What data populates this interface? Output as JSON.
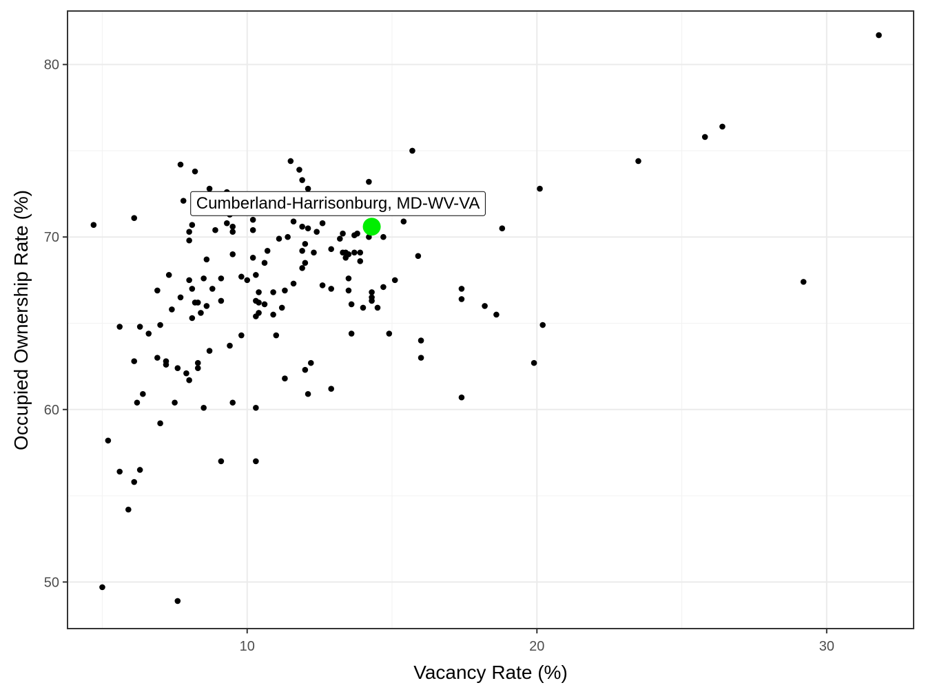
{
  "chart_data": {
    "type": "scatter",
    "title": "",
    "xlabel": "Vacancy Rate (%)",
    "ylabel": "Occupied Ownership Rate (%)",
    "xlim": [
      3.8,
      33.0
    ],
    "ylim": [
      47.3,
      83.1
    ],
    "x_ticks": [
      10,
      20,
      30
    ],
    "y_ticks": [
      50,
      60,
      70,
      80
    ],
    "x_tick_labels": [
      "10",
      "20",
      "30"
    ],
    "y_tick_labels": [
      "50",
      "60",
      "70",
      "80"
    ],
    "grid": true,
    "point_color": "#000000",
    "highlight_color": "#00ee00",
    "highlight": {
      "label": "Cumberland-Harrisonburg, MD-WV-VA",
      "x": 14.3,
      "y": 70.6
    },
    "points": [
      [
        4.7,
        70.7
      ],
      [
        5.0,
        49.7
      ],
      [
        5.2,
        58.2
      ],
      [
        5.6,
        64.8
      ],
      [
        5.6,
        56.4
      ],
      [
        5.9,
        54.2
      ],
      [
        6.1,
        71.1
      ],
      [
        6.1,
        62.8
      ],
      [
        6.1,
        55.8
      ],
      [
        6.2,
        60.4
      ],
      [
        6.3,
        64.8
      ],
      [
        6.3,
        56.5
      ],
      [
        6.4,
        60.9
      ],
      [
        6.6,
        64.4
      ],
      [
        6.9,
        66.9
      ],
      [
        6.9,
        63.0
      ],
      [
        7.0,
        64.9
      ],
      [
        7.0,
        59.2
      ],
      [
        7.2,
        62.8
      ],
      [
        7.2,
        62.6
      ],
      [
        7.3,
        67.8
      ],
      [
        7.4,
        65.8
      ],
      [
        7.5,
        60.4
      ],
      [
        7.6,
        62.4
      ],
      [
        7.6,
        48.9
      ],
      [
        7.7,
        74.2
      ],
      [
        7.7,
        66.5
      ],
      [
        7.8,
        72.1
      ],
      [
        7.9,
        62.1
      ],
      [
        8.0,
        70.3
      ],
      [
        8.0,
        69.8
      ],
      [
        8.0,
        67.5
      ],
      [
        8.0,
        61.7
      ],
      [
        8.1,
        70.7
      ],
      [
        8.1,
        67.0
      ],
      [
        8.1,
        65.3
      ],
      [
        8.2,
        73.8
      ],
      [
        8.2,
        66.2
      ],
      [
        8.3,
        62.7
      ],
      [
        8.3,
        66.2
      ],
      [
        8.3,
        62.4
      ],
      [
        8.4,
        65.6
      ],
      [
        8.5,
        67.6
      ],
      [
        8.5,
        60.1
      ],
      [
        8.6,
        68.7
      ],
      [
        8.6,
        66.0
      ],
      [
        8.7,
        63.4
      ],
      [
        8.7,
        72.8
      ],
      [
        8.8,
        67.0
      ],
      [
        8.9,
        70.4
      ],
      [
        9.1,
        67.6
      ],
      [
        9.1,
        66.3
      ],
      [
        9.1,
        57.0
      ],
      [
        9.3,
        72.6
      ],
      [
        9.3,
        71.7
      ],
      [
        9.3,
        70.8
      ],
      [
        9.4,
        71.3
      ],
      [
        9.4,
        63.7
      ],
      [
        9.5,
        70.6
      ],
      [
        9.5,
        70.3
      ],
      [
        9.5,
        69.0
      ],
      [
        9.5,
        60.4
      ],
      [
        9.8,
        67.7
      ],
      [
        9.8,
        64.3
      ],
      [
        10.0,
        67.5
      ],
      [
        10.2,
        71.0
      ],
      [
        10.2,
        68.8
      ],
      [
        10.2,
        70.4
      ],
      [
        10.3,
        67.8
      ],
      [
        10.3,
        66.3
      ],
      [
        10.3,
        65.4
      ],
      [
        10.3,
        57.0
      ],
      [
        10.3,
        60.1
      ],
      [
        10.4,
        66.2
      ],
      [
        10.4,
        66.8
      ],
      [
        10.4,
        65.6
      ],
      [
        10.6,
        66.1
      ],
      [
        10.6,
        68.5
      ],
      [
        10.7,
        69.2
      ],
      [
        10.9,
        66.8
      ],
      [
        10.9,
        65.5
      ],
      [
        11.0,
        64.3
      ],
      [
        11.1,
        69.9
      ],
      [
        11.2,
        65.9
      ],
      [
        11.3,
        66.9
      ],
      [
        11.3,
        61.8
      ],
      [
        11.4,
        70.0
      ],
      [
        11.5,
        74.4
      ],
      [
        11.6,
        67.3
      ],
      [
        11.6,
        70.9
      ],
      [
        11.8,
        73.9
      ],
      [
        11.9,
        73.3
      ],
      [
        11.9,
        70.6
      ],
      [
        11.9,
        69.2
      ],
      [
        11.9,
        68.2
      ],
      [
        12.0,
        62.3
      ],
      [
        12.0,
        68.5
      ],
      [
        12.0,
        69.6
      ],
      [
        12.1,
        72.8
      ],
      [
        12.1,
        70.5
      ],
      [
        12.1,
        60.9
      ],
      [
        12.2,
        62.7
      ],
      [
        12.3,
        69.1
      ],
      [
        12.4,
        70.3
      ],
      [
        12.6,
        70.8
      ],
      [
        12.6,
        67.2
      ],
      [
        12.9,
        61.2
      ],
      [
        12.9,
        69.3
      ],
      [
        12.9,
        67.0
      ],
      [
        13.2,
        69.9
      ],
      [
        13.3,
        70.2
      ],
      [
        13.3,
        69.1
      ],
      [
        13.4,
        69.1
      ],
      [
        13.4,
        68.8
      ],
      [
        13.5,
        67.6
      ],
      [
        13.5,
        66.9
      ],
      [
        13.5,
        69.0
      ],
      [
        13.6,
        66.1
      ],
      [
        13.6,
        64.4
      ],
      [
        13.7,
        70.1
      ],
      [
        13.7,
        69.1
      ],
      [
        13.8,
        70.2
      ],
      [
        13.9,
        69.1
      ],
      [
        13.9,
        68.6
      ],
      [
        14.0,
        65.9
      ],
      [
        14.2,
        70.0
      ],
      [
        14.2,
        73.2
      ],
      [
        14.3,
        66.3
      ],
      [
        14.3,
        66.5
      ],
      [
        14.3,
        66.8
      ],
      [
        14.5,
        65.9
      ],
      [
        14.7,
        70.0
      ],
      [
        14.7,
        67.1
      ],
      [
        14.9,
        64.4
      ],
      [
        15.1,
        67.5
      ],
      [
        15.4,
        70.9
      ],
      [
        15.7,
        75.0
      ],
      [
        15.9,
        68.9
      ],
      [
        16.0,
        63.0
      ],
      [
        16.0,
        64.0
      ],
      [
        17.4,
        67.0
      ],
      [
        17.4,
        66.4
      ],
      [
        17.4,
        60.7
      ],
      [
        18.2,
        66.0
      ],
      [
        18.6,
        65.5
      ],
      [
        18.8,
        70.5
      ],
      [
        19.9,
        62.7
      ],
      [
        20.1,
        72.8
      ],
      [
        20.2,
        64.9
      ],
      [
        23.5,
        74.4
      ],
      [
        25.8,
        75.8
      ],
      [
        26.4,
        76.4
      ],
      [
        29.2,
        67.4
      ],
      [
        31.8,
        81.7
      ]
    ]
  }
}
